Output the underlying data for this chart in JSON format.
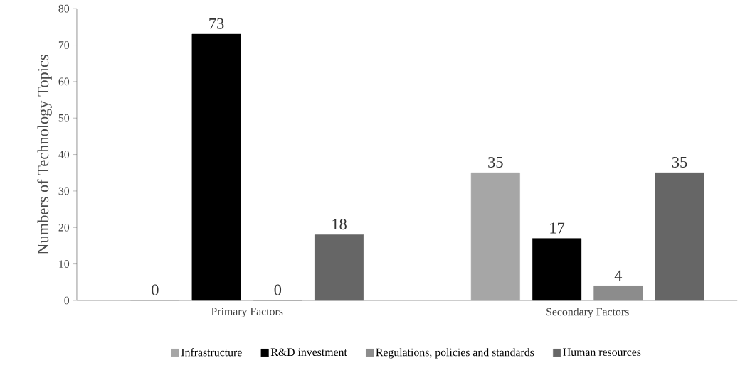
{
  "chart_data": {
    "type": "bar",
    "ylabel": "Numbers of Technology Topics",
    "categories": [
      "Primary Factors",
      "Secondary Factors"
    ],
    "series": [
      {
        "name": "Infrastructure",
        "color": "#a6a6a6",
        "values": [
          0,
          35
        ]
      },
      {
        "name": "R&D investment",
        "color": "#000000",
        "values": [
          73,
          17
        ]
      },
      {
        "name": "Regulations, policies and standards",
        "color": "#8c8c8c",
        "values": [
          0,
          4
        ]
      },
      {
        "name": "Human resources",
        "color": "#666666",
        "values": [
          18,
          35
        ]
      }
    ],
    "ylim": [
      0,
      80
    ],
    "yticks": [
      0,
      10,
      20,
      30,
      40,
      50,
      60,
      70,
      80
    ],
    "data_labels": true,
    "legend": "bottom",
    "grid": false
  }
}
